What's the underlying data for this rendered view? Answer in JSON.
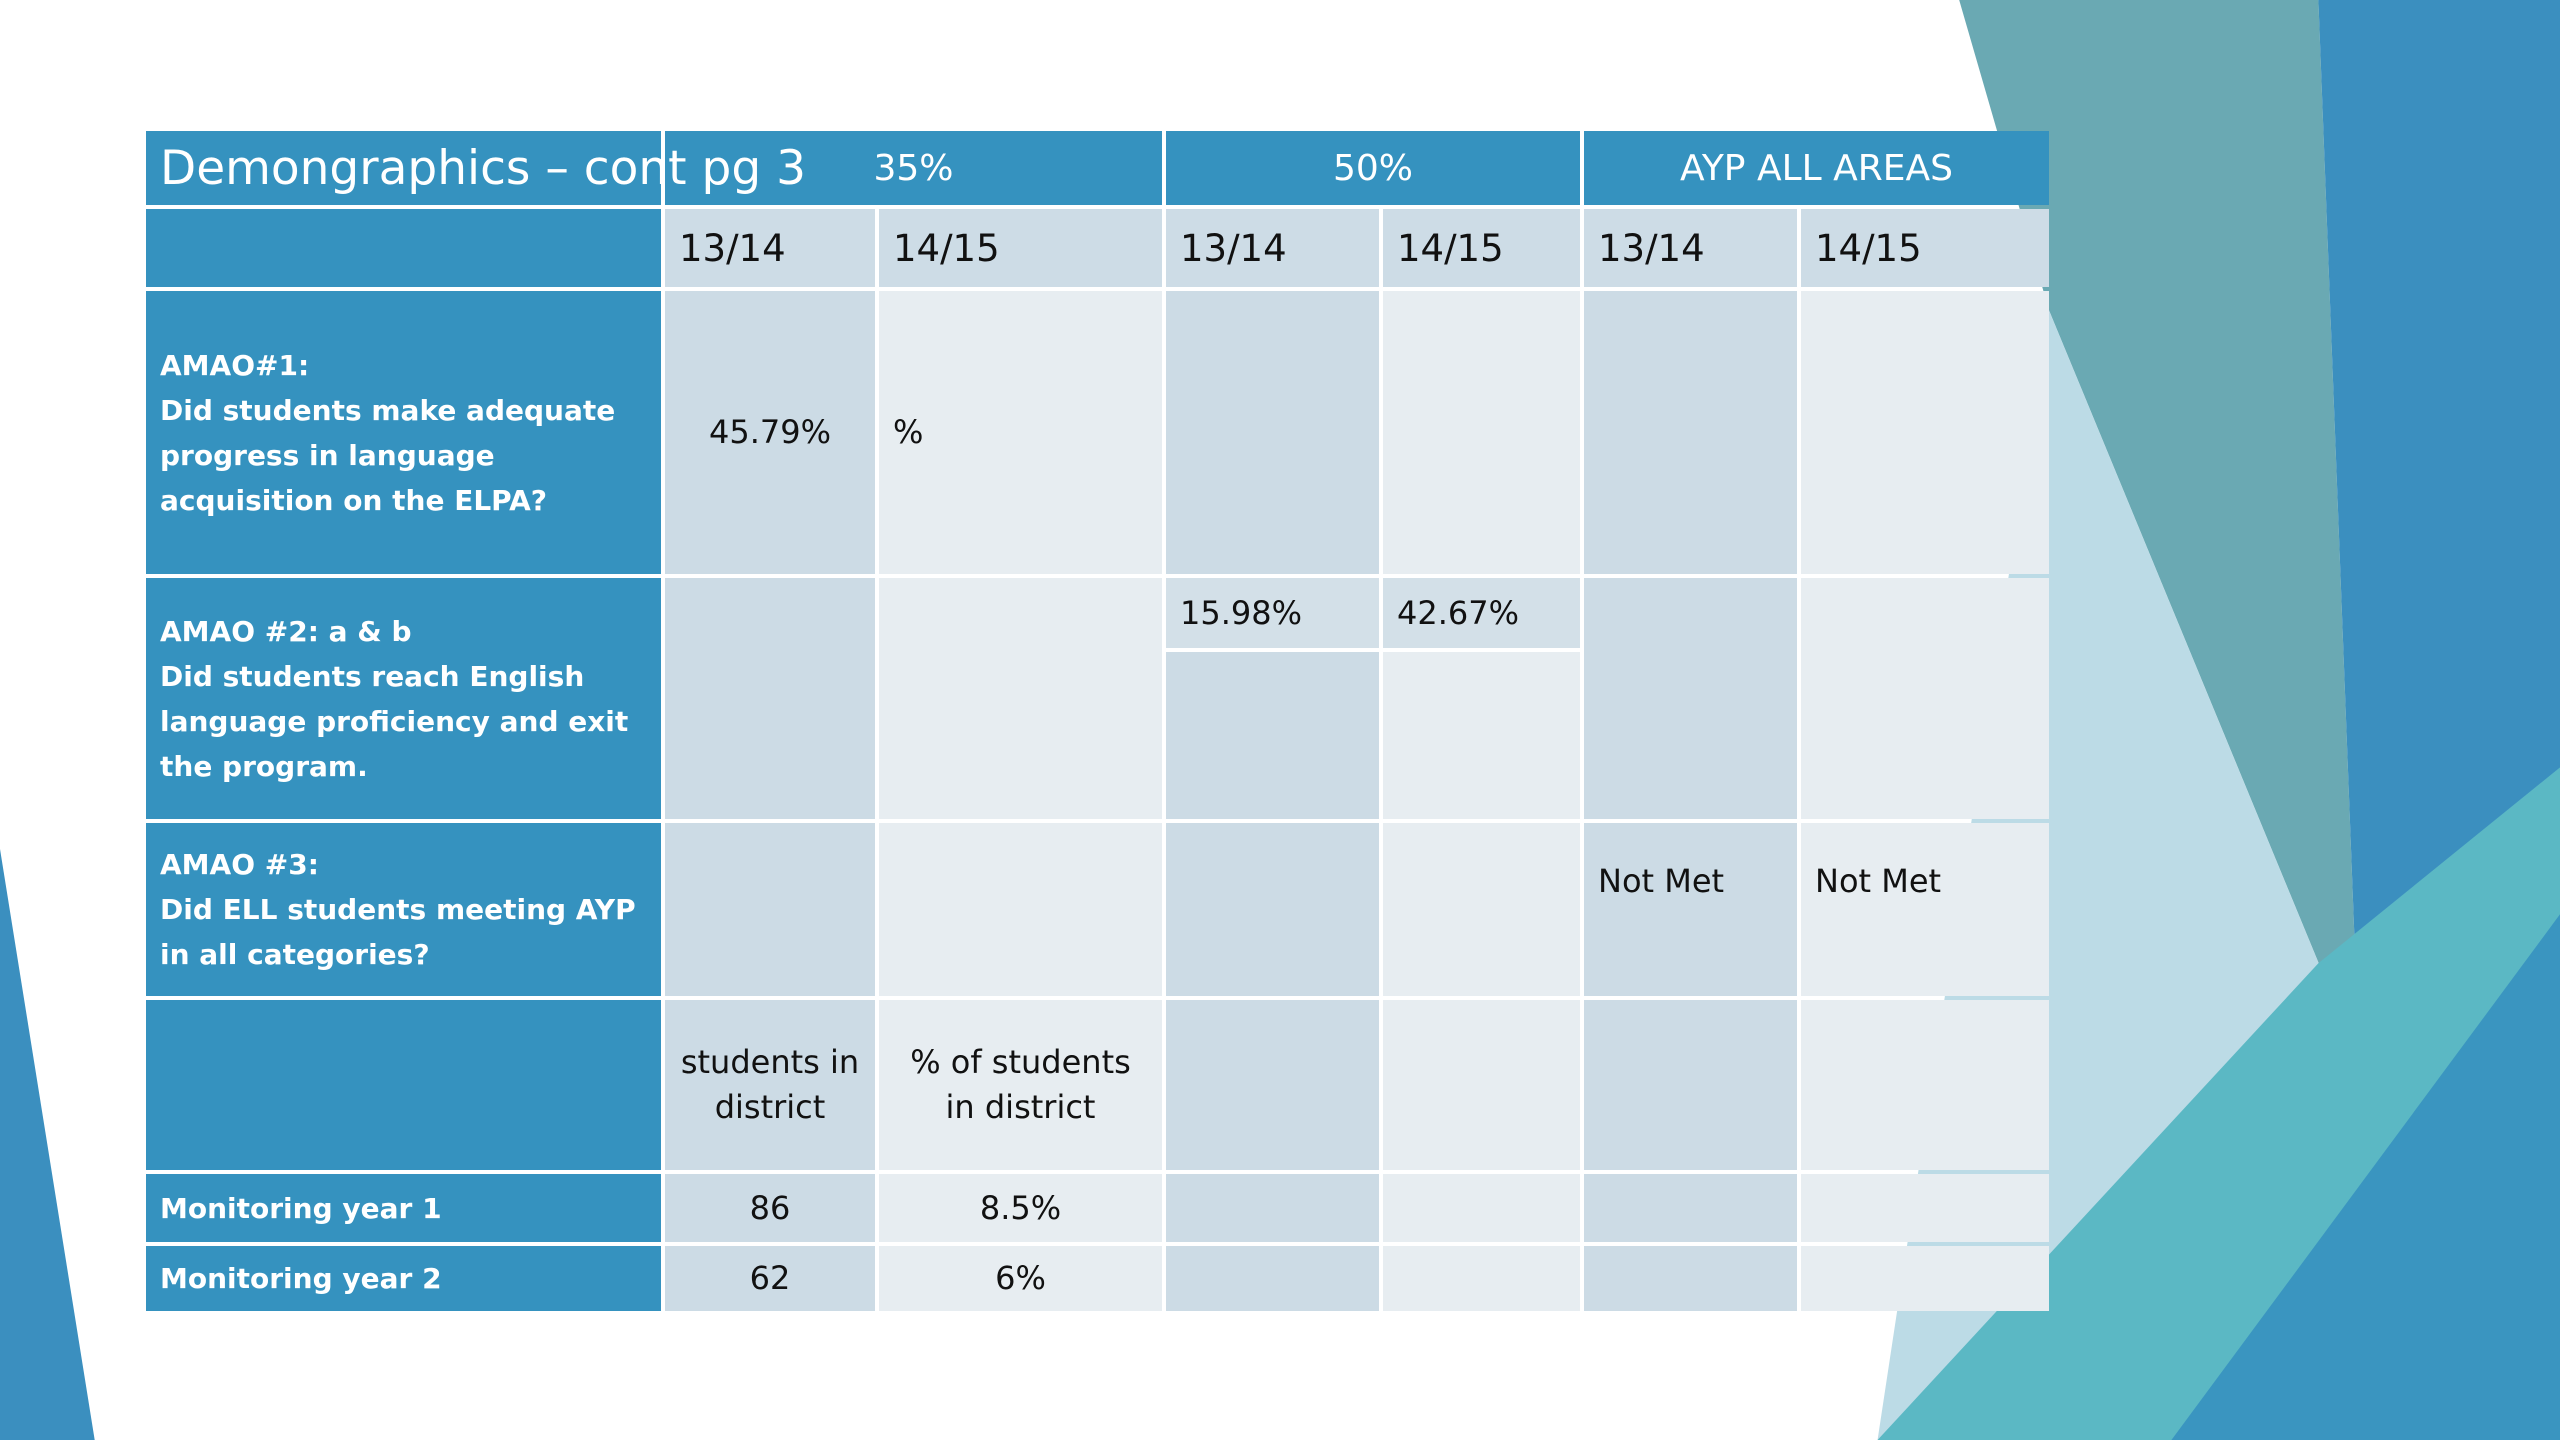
{
  "header": {
    "title": "Demongraphics – cont pg 3",
    "groups": [
      "35%",
      "50%",
      "AYP ALL AREAS"
    ]
  },
  "subheader": [
    "13/14",
    "14/15",
    "13/14",
    "14/15",
    "13/14",
    "14/15"
  ],
  "rows": [
    {
      "label": [
        "AMAO#1:",
        "Did students make adequate progress in language acquisition on the ELPA?"
      ],
      "cells": [
        "45.79%",
        "%",
        null,
        null,
        null,
        null
      ]
    },
    {
      "label": [
        "AMAO #2: a & b",
        "Did students reach English language proficiency and exit the program."
      ],
      "cells": [
        null,
        null,
        "15.98%",
        "42.67%",
        null,
        null
      ]
    },
    {
      "label": [
        "AMAO #3:",
        "Did ELL students meeting AYP in all categories?"
      ],
      "cells": [
        null,
        null,
        null,
        null,
        "Not Met",
        "Not Met"
      ]
    },
    {
      "label": null,
      "cells": [
        "students in district",
        "% of  students in district",
        null,
        null,
        null,
        null
      ]
    },
    {
      "label": [
        "Monitoring year 1"
      ],
      "cells": [
        "86",
        "8.5%",
        null,
        null,
        null,
        null
      ]
    },
    {
      "label": [
        "Monitoring year 2"
      ],
      "cells": [
        "62",
        "6%",
        null,
        null,
        null,
        null
      ]
    }
  ]
}
